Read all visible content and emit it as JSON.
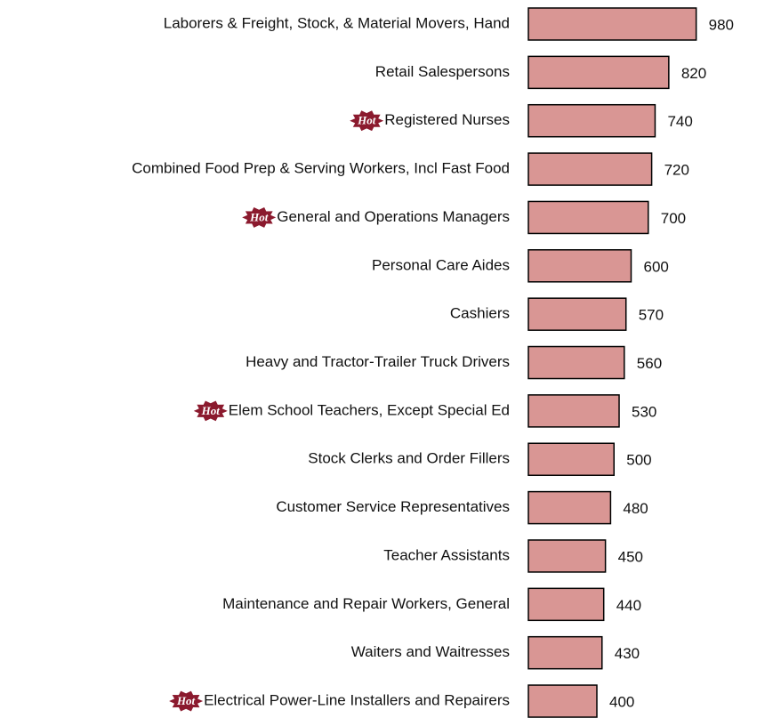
{
  "chart_data": {
    "type": "bar",
    "orientation": "horizontal",
    "categories": [
      "Laborers & Freight, Stock, & Material Movers, Hand",
      "Retail Salespersons",
      "Registered Nurses",
      "Combined Food Prep & Serving Workers, Incl Fast Food",
      "General and Operations Managers",
      "Personal Care Aides",
      "Cashiers",
      "Heavy and Tractor-Trailer Truck Drivers",
      "Elem School Teachers, Except Special Ed",
      "Stock Clerks and Order Fillers",
      "Customer Service Representatives",
      "Teacher Assistants",
      "Maintenance and Repair Workers, General",
      "Waiters and Waitresses",
      "Electrical Power-Line Installers and Repairers"
    ],
    "values": [
      980,
      820,
      740,
      720,
      700,
      600,
      570,
      560,
      530,
      500,
      480,
      450,
      440,
      430,
      400
    ],
    "badges": [
      null,
      null,
      "Hot",
      null,
      "Hot",
      null,
      null,
      null,
      "Hot",
      null,
      null,
      null,
      null,
      null,
      "Hot"
    ],
    "color": "#d99694",
    "badge_color": "#8b1a2e"
  }
}
